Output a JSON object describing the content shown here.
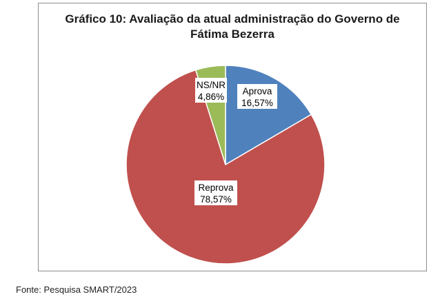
{
  "chart_data": {
    "type": "pie",
    "title_lines": [
      "Gráfico 10: Avaliação da atual administração do Governo de",
      "Fátima Bezerra"
    ],
    "slices": [
      {
        "name": "Aprova",
        "value": 16.57,
        "label": "16,57%",
        "color": "#4f81bd"
      },
      {
        "name": "Reprova",
        "value": 78.57,
        "label": "78,57%",
        "color": "#c0504d"
      },
      {
        "name": "NS/NR",
        "value": 4.86,
        "label": "4,86%",
        "color": "#9bbb59"
      }
    ]
  },
  "source": "Fonte: Pesquisa SMART/2023"
}
